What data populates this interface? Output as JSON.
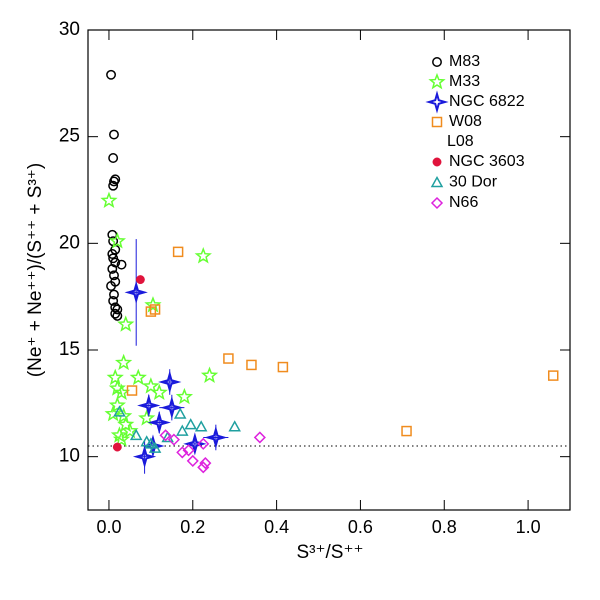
{
  "chart_data": {
    "type": "scatter",
    "x_label": "S³⁺/S⁺⁺",
    "y_label": "(Ne⁺ + Ne⁺⁺)/(S⁺⁺ + S³⁺)",
    "xlim": [
      -0.05,
      1.1
    ],
    "ylim": [
      7.5,
      30
    ],
    "xticks": [
      {
        "value": 0,
        "label": "0.0"
      },
      0.2,
      0.4,
      0.6,
      0.8,
      {
        "value": 1,
        "label": "1.0"
      }
    ],
    "yticks": [
      10,
      15,
      20,
      25,
      30
    ],
    "reference_line": 10.5,
    "legend_position": "upper right",
    "series": [
      {
        "name": "M83",
        "color": "#000000",
        "marker": "circle",
        "x": [
          0.005,
          0.012,
          0.01,
          0.015,
          0.012,
          0.01,
          0.008,
          0.01,
          0.015,
          0.008,
          0.01,
          0.015,
          0.03,
          0.008,
          0.012,
          0.015,
          0.005,
          0.012,
          0.01,
          0.015,
          0.02,
          0.015,
          0.02
        ],
        "values": [
          27.9,
          25.1,
          24.0,
          23.0,
          22.9,
          22.7,
          20.4,
          20.1,
          19.7,
          19.5,
          19.3,
          19.1,
          19.0,
          18.8,
          18.5,
          18.2,
          18.0,
          17.6,
          17.3,
          17.0,
          16.9,
          16.7,
          16.6
        ]
      },
      {
        "name": "M33",
        "color": "#66ff33",
        "marker": "star",
        "x": [
          0.0,
          0.02,
          0.105,
          0.04,
          0.225,
          0.035,
          0.015,
          0.07,
          0.24,
          0.02,
          0.03,
          0.18,
          0.02,
          0.01,
          0.035,
          0.09,
          0.04,
          0.05,
          0.025,
          0.03,
          0.1,
          0.12
        ],
        "values": [
          22.0,
          20.1,
          17.1,
          16.2,
          19.4,
          14.4,
          13.7,
          13.7,
          13.8,
          13.2,
          13.0,
          12.8,
          12.4,
          12.0,
          11.9,
          11.8,
          11.5,
          11.2,
          11.0,
          10.8,
          13.3,
          13.0
        ]
      },
      {
        "name": "NGC 6822",
        "color": "#1a1adb",
        "marker": "star4",
        "x": [
          0.065,
          0.145,
          0.095,
          0.15,
          0.12,
          0.085,
          0.205,
          0.255,
          0.105
        ],
        "values": [
          17.7,
          13.5,
          12.4,
          12.3,
          11.6,
          10.0,
          10.6,
          10.9,
          10.5
        ],
        "x_err": [
          0.01,
          0.01,
          0.02,
          0.03,
          0.02,
          0.01,
          0.02,
          0.03,
          0.02
        ],
        "y_err": [
          2.5,
          0.6,
          0.5,
          0.6,
          0.5,
          0.8,
          0.3,
          0.6,
          0.3
        ]
      },
      {
        "name": "W08",
        "color": "#f08c1e",
        "marker": "square",
        "x": [
          0.165,
          0.11,
          0.1,
          0.055,
          0.285,
          0.34,
          0.415,
          0.71,
          1.06
        ],
        "values": [
          19.6,
          16.9,
          16.8,
          13.1,
          14.6,
          14.3,
          14.2,
          11.2,
          13.8
        ]
      },
      {
        "name": "NGC 3603",
        "group": "L08",
        "color": "#e0133c",
        "marker": "dot",
        "x": [
          0.075,
          0.02
        ],
        "values": [
          18.3,
          10.45
        ]
      },
      {
        "name": "30 Dor",
        "group": "L08",
        "color": "#20a0a0",
        "marker": "triangle",
        "x": [
          0.025,
          0.065,
          0.09,
          0.1,
          0.17,
          0.195,
          0.22,
          0.3,
          0.175,
          0.11,
          0.14
        ],
        "values": [
          12.1,
          11.0,
          10.7,
          10.6,
          12.0,
          11.5,
          11.4,
          11.4,
          11.2,
          10.4,
          10.9
        ]
      },
      {
        "name": "N66",
        "group": "L08",
        "color": "#dd22dd",
        "marker": "diamond",
        "x": [
          0.135,
          0.155,
          0.175,
          0.19,
          0.2,
          0.225,
          0.23,
          0.225,
          0.36
        ],
        "values": [
          11.0,
          10.8,
          10.2,
          10.3,
          9.8,
          10.6,
          9.7,
          9.5,
          10.9
        ]
      }
    ]
  }
}
